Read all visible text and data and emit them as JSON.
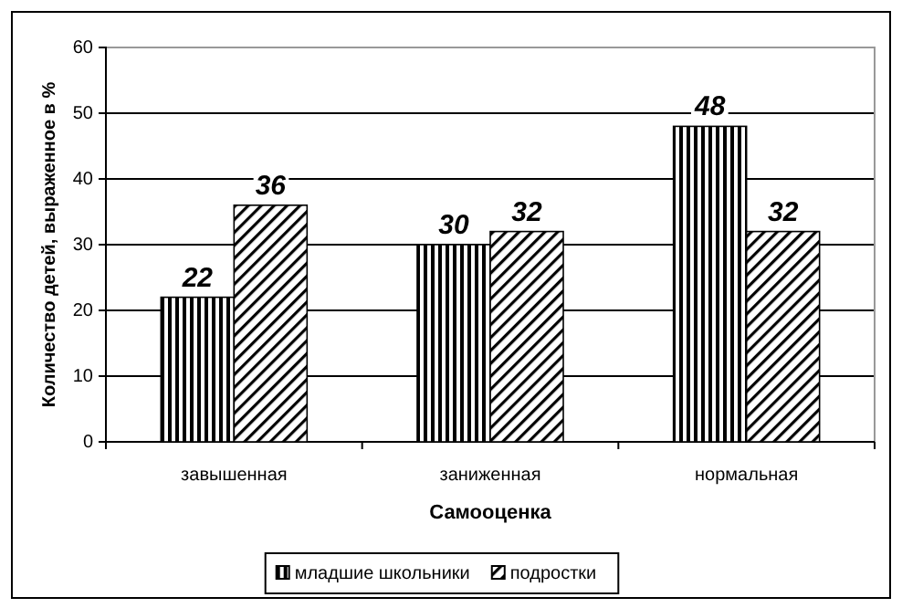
{
  "chart_data": {
    "type": "bar",
    "xlabel": "Самооценка",
    "ylabel": "Количество детей, выраженное в %",
    "categories": [
      "завышенная",
      "заниженная",
      "нормальная"
    ],
    "series": [
      {
        "name": "младшие школьники",
        "color": "#000000",
        "values": [
          22,
          30,
          48
        ]
      },
      {
        "name": "подростки",
        "color": "#000000",
        "values": [
          36,
          32,
          32
        ]
      }
    ],
    "ylim": [
      0,
      60
    ],
    "yticks": [
      0,
      10,
      20,
      30,
      40,
      50,
      60
    ],
    "grid": "y",
    "legend": "bottom",
    "data_labels": true
  }
}
